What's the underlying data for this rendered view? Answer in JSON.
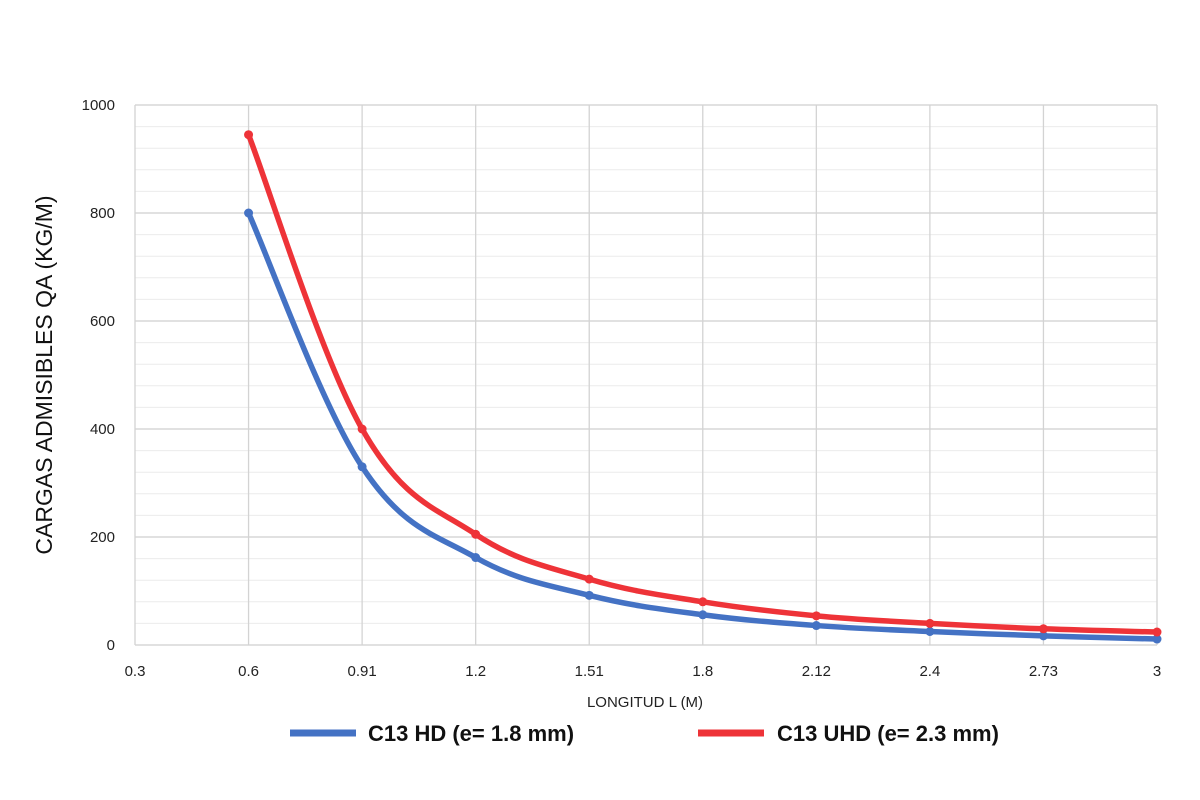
{
  "chart_data": {
    "type": "line",
    "xlabel": "LONGITUD L (M)",
    "ylabel": "CARGAS ADMISIBLES QA (KG/M)",
    "x_ticks": [
      "0.3",
      "0.6",
      "0.91",
      "1.2",
      "1.51",
      "1.8",
      "2.12",
      "2.4",
      "2.73",
      "3"
    ],
    "y_ticks": [
      "0",
      "200",
      "400",
      "600",
      "800",
      "1000"
    ],
    "ylim": [
      0,
      1000
    ],
    "grid": true,
    "legend_position": "bottom",
    "x": [
      "0.6",
      "0.91",
      "1.2",
      "1.51",
      "1.8",
      "2.12",
      "2.4",
      "2.73",
      "3"
    ],
    "series": [
      {
        "name": "C13 HD (e= 1.8 mm)",
        "color": "#4472c4",
        "values": [
          800,
          330,
          162,
          92,
          56,
          36,
          25,
          17,
          11
        ]
      },
      {
        "name": "C13 UHD (e= 2.3 mm)",
        "color": "#ee3338",
        "values": [
          945,
          400,
          205,
          122,
          80,
          54,
          40,
          30,
          24
        ]
      }
    ]
  }
}
